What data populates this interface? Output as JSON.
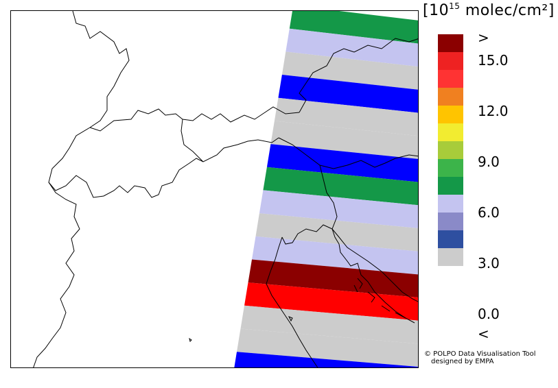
{
  "legend": {
    "unit_prefix": "[10",
    "unit_exponent": "15",
    "unit_suffix": " molec/cm²]",
    "labels": [
      ">",
      "15.0",
      "12.0",
      "9.0",
      "6.0",
      "3.0",
      "0.0",
      "<"
    ],
    "bins": [
      {
        "name": "above-max",
        "color": "#8b0000"
      },
      {
        "name": "15-16.5",
        "color": "#ee2222"
      },
      {
        "name": "13.5-15",
        "color": "#ff3333"
      },
      {
        "name": "12-13.5",
        "color": "#f08020"
      },
      {
        "name": "10.5-12",
        "color": "#ffc400"
      },
      {
        "name": "9-10.5",
        "color": "#f2ec30"
      },
      {
        "name": "7.5-9",
        "color": "#a8cc3a"
      },
      {
        "name": "6-7.5",
        "color": "#3cb44a"
      },
      {
        "name": "4.5-6",
        "color": "#149848"
      },
      {
        "name": "3-4.5",
        "color": "#c4c4f0"
      },
      {
        "name": "1.5-3",
        "color": "#8a8ac8"
      },
      {
        "name": "0-1.5",
        "color": "#2e4fa0"
      },
      {
        "name": "below-min",
        "color": "#cccccc"
      }
    ]
  },
  "credit": {
    "line1": "© POLPO Data Visualisation Tool",
    "line2": "designed by EMPA"
  },
  "swath": {
    "pixels": [
      {
        "color": "#149848"
      },
      {
        "color": "#c4c4f0"
      },
      {
        "color": "#cccccc"
      },
      {
        "color": "#0000ff"
      },
      {
        "color": "#cccccc"
      },
      {
        "color": "#cccccc"
      },
      {
        "color": "#0000ff"
      },
      {
        "color": "#149848"
      },
      {
        "color": "#c4c4f0"
      },
      {
        "color": "#cccccc"
      },
      {
        "color": "#c4c4f0"
      },
      {
        "color": "#8b0000"
      },
      {
        "color": "#ff0000"
      },
      {
        "color": "#cccccc"
      },
      {
        "color": "#cccccc"
      },
      {
        "color": "#0000ff"
      }
    ]
  }
}
